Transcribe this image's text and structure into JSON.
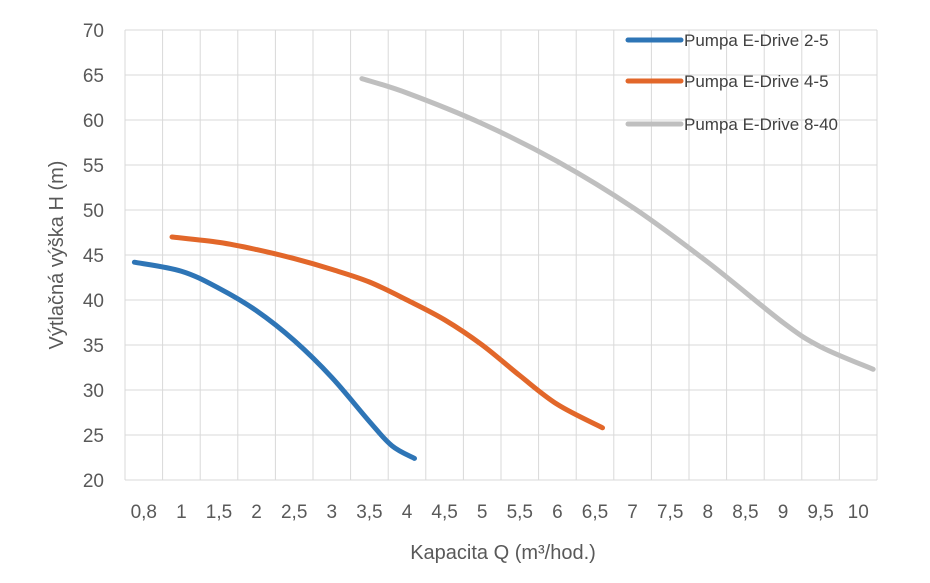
{
  "chart_data": {
    "type": "line",
    "title": "",
    "xlabel": "Kapacita Q (m³/hod.)",
    "ylabel": "Výtlačná výška H (m)",
    "xlim": [
      0.6,
      10.3
    ],
    "ylim": [
      20,
      70
    ],
    "x_ticks": [
      "0,8",
      "1",
      "1,5",
      "2",
      "2,5",
      "3",
      "3,5",
      "4",
      "4,5",
      "5",
      "5,5",
      "6",
      "6,5",
      "7",
      "7,5",
      "8",
      "8,5",
      "9",
      "9,5",
      "10"
    ],
    "y_ticks": [
      "70",
      "65",
      "60",
      "55",
      "50",
      "45",
      "40",
      "35",
      "30",
      "25",
      "20"
    ],
    "grid": true,
    "legend_position": "top-right",
    "series": [
      {
        "name": "Pumpa E-Drive 2-5",
        "color": "#2E75B6",
        "x": [
          0.75,
          1.0,
          1.5,
          2.0,
          2.5,
          3.0,
          3.5,
          3.8,
          4.1
        ],
        "y": [
          44.2,
          43.2,
          41.3,
          38.8,
          35.5,
          31.4,
          26.5,
          23.8,
          22.4
        ]
      },
      {
        "name": "Pumpa E-Drive 4-5",
        "color": "#E2672A",
        "x": [
          0.95,
          1.5,
          2.0,
          2.5,
          3.0,
          3.5,
          4.0,
          4.5,
          5.0,
          5.5,
          6.0,
          6.6
        ],
        "y": [
          47.0,
          46.4,
          45.6,
          44.6,
          43.4,
          42.0,
          40.0,
          37.8,
          35.0,
          31.6,
          28.4,
          25.8
        ]
      },
      {
        "name": "Pumpa E-Drive 8-40",
        "color": "#BFBFBF",
        "x": [
          3.4,
          4.0,
          5.0,
          6.0,
          7.0,
          8.0,
          9.0,
          9.5,
          10.2
        ],
        "y": [
          64.6,
          63.0,
          59.6,
          55.4,
          50.3,
          44.2,
          37.5,
          34.8,
          32.3
        ]
      }
    ]
  }
}
